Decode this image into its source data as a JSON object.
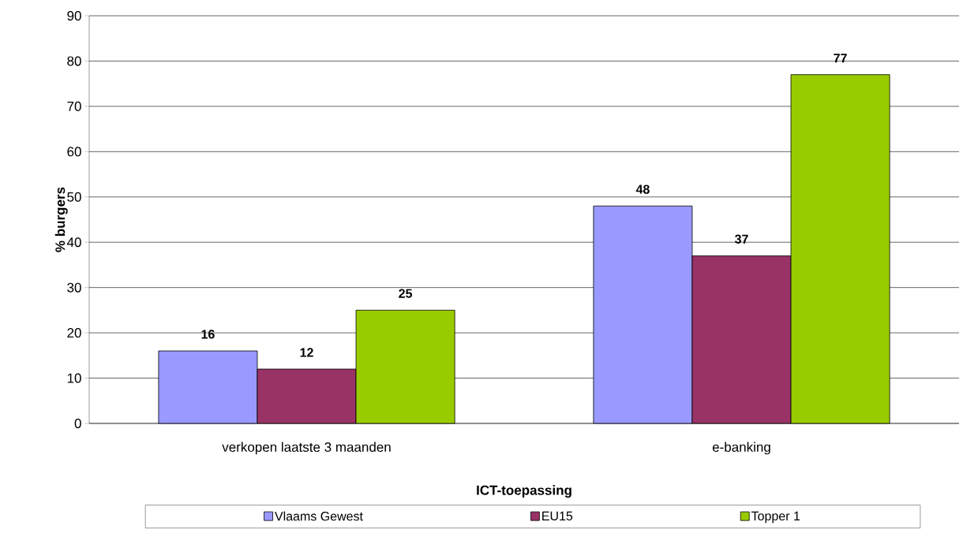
{
  "chart_data": {
    "type": "bar",
    "xlabel": "ICT-toepassing",
    "ylabel": "% burgers",
    "categories": [
      "verkopen laatste 3 maanden",
      "e-banking"
    ],
    "series": [
      {
        "name": "Vlaams Gewest",
        "color": "#9999ff",
        "values": [
          16,
          48
        ]
      },
      {
        "name": "EU15",
        "color": "#993366",
        "values": [
          12,
          37
        ]
      },
      {
        "name": "Topper 1",
        "color": "#99cc00",
        "values": [
          25,
          77
        ]
      }
    ],
    "ylim": [
      0,
      90
    ],
    "yticks": [
      0,
      10,
      20,
      30,
      40,
      50,
      60,
      70,
      80,
      90
    ],
    "grid": "y",
    "legend": "bottom",
    "data_labels": true
  }
}
